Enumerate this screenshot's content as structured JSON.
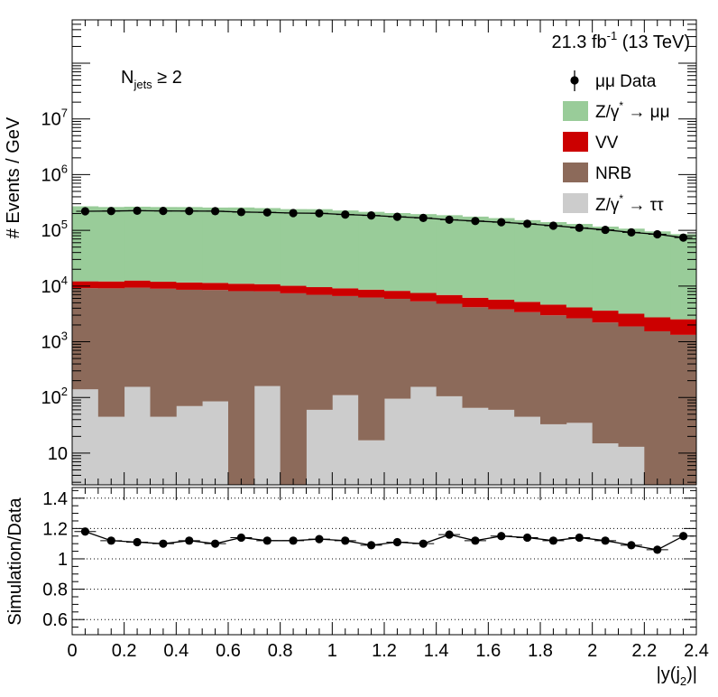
{
  "chart_data": {
    "type": "bar",
    "annotations": {
      "lumi_text": "21.3 fb",
      "lumi_exponent": "-1",
      "energy_text": " (13 TeV)",
      "selection_main": "N",
      "selection_sub": "jets",
      "selection_cut": " ≥ 2"
    },
    "x": {
      "label_prefix": "|y(j",
      "label_sub": "2",
      "label_suffix": ")|",
      "range": [
        0,
        2.4
      ],
      "ticks": [
        0,
        0.2,
        0.4,
        0.6,
        0.8,
        1,
        1.2,
        1.4,
        1.6,
        1.8,
        2,
        2.2,
        2.4
      ],
      "tick_labels": [
        "0",
        "0.2",
        "0.4",
        "0.6",
        "0.8",
        "1",
        "1.2",
        "1.4",
        "1.6",
        "1.8",
        "2",
        "2.2",
        "2.4"
      ],
      "bin_width": 0.1
    },
    "top_panel": {
      "ylabel": "# Events / GeV",
      "yscale": "log",
      "ylim": [
        2.7,
        600000000
      ],
      "yticks": [
        10,
        100,
        1000,
        10000,
        100000,
        1000000,
        10000000
      ],
      "ytick_labels": [
        {
          "base": "10",
          "exp": ""
        },
        {
          "base": "10",
          "exp": "2"
        },
        {
          "base": "10",
          "exp": "3"
        },
        {
          "base": "10",
          "exp": "4"
        },
        {
          "base": "10",
          "exp": "5"
        },
        {
          "base": "10",
          "exp": "6"
        },
        {
          "base": "10",
          "exp": "7"
        }
      ],
      "stacked_series": [
        {
          "name": "Z/γ* → ττ",
          "color": "#cccccc",
          "values": [
            140,
            45,
            155,
            45,
            70,
            85,
            0,
            160,
            0,
            60,
            110,
            17,
            95,
            155,
            105,
            65,
            60,
            45,
            33,
            35,
            15,
            13,
            0,
            0
          ]
        },
        {
          "name": "NRB",
          "color": "#8c6a5a",
          "values": [
            9000,
            9050,
            9200,
            8900,
            8500,
            8400,
            8100,
            7850,
            7400,
            6900,
            6500,
            6200,
            5800,
            5150,
            4700,
            4100,
            3750,
            3350,
            2950,
            2600,
            2200,
            1870,
            1540,
            1330
          ]
        },
        {
          "name": "VV",
          "color": "#cc0000",
          "values": [
            3000,
            3000,
            3200,
            3000,
            3000,
            2900,
            2900,
            2800,
            2700,
            2600,
            2500,
            2400,
            2300,
            2200,
            2100,
            2000,
            1900,
            1800,
            1650,
            1500,
            1400,
            1300,
            1200,
            1200
          ]
        },
        {
          "name": "Z/γ* → μμ",
          "color": "#99cc99",
          "values": [
            258000,
            250000,
            253000,
            250000,
            250000,
            245000,
            246000,
            240000,
            230000,
            230000,
            218000,
            206000,
            196000,
            188000,
            180000,
            170000,
            160000,
            147000,
            136000,
            126000,
            113000,
            104000,
            93000,
            83000
          ]
        }
      ],
      "data": {
        "name": "μμ Data",
        "marker": "circle",
        "x": [
          0.05,
          0.15,
          0.25,
          0.35,
          0.45,
          0.55,
          0.65,
          0.75,
          0.85,
          0.95,
          1.05,
          1.15,
          1.25,
          1.35,
          1.45,
          1.55,
          1.65,
          1.75,
          1.85,
          1.95,
          2.05,
          2.15,
          2.25,
          2.35
        ],
        "y": [
          220000,
          222000,
          225000,
          223000,
          222000,
          221000,
          213000,
          210000,
          204000,
          202000,
          192000,
          185000,
          175000,
          167000,
          155000,
          147000,
          140000,
          131000,
          121000,
          111000,
          102000,
          92000,
          85000,
          74000
        ]
      },
      "legend": {
        "position": "top-right",
        "entries": [
          {
            "label": "μμ Data",
            "kind": "marker"
          },
          {
            "label_main": "Z/γ",
            "label_sup": "*",
            "label_tail": " → μμ",
            "kind": "box",
            "color": "#99cc99"
          },
          {
            "label": "VV",
            "kind": "box",
            "color": "#cc0000"
          },
          {
            "label": "NRB",
            "kind": "box",
            "color": "#8c6a5a"
          },
          {
            "label_main": "Z/γ",
            "label_sup": "*",
            "label_tail": " → ττ",
            "kind": "box",
            "color": "#cccccc"
          }
        ]
      }
    },
    "ratio_panel": {
      "ylabel": "Simulation/Data",
      "ylim": [
        0.5,
        1.47
      ],
      "yticks": [
        0.6,
        0.8,
        1,
        1.2,
        1.4
      ],
      "ytick_labels": [
        "0.6",
        "0.8",
        "1",
        "1.2",
        "1.4"
      ],
      "gridlines": [
        0.6,
        0.8,
        1.0,
        1.2,
        1.4
      ],
      "x": [
        0.05,
        0.15,
        0.25,
        0.35,
        0.45,
        0.55,
        0.65,
        0.75,
        0.85,
        0.95,
        1.05,
        1.15,
        1.25,
        1.35,
        1.45,
        1.55,
        1.65,
        1.75,
        1.85,
        1.95,
        2.05,
        2.15,
        2.25,
        2.35
      ],
      "values": [
        1.18,
        1.12,
        1.11,
        1.1,
        1.12,
        1.1,
        1.14,
        1.12,
        1.12,
        1.13,
        1.12,
        1.09,
        1.11,
        1.1,
        1.16,
        1.12,
        1.15,
        1.14,
        1.12,
        1.14,
        1.12,
        1.09,
        1.06,
        1.15
      ]
    }
  }
}
